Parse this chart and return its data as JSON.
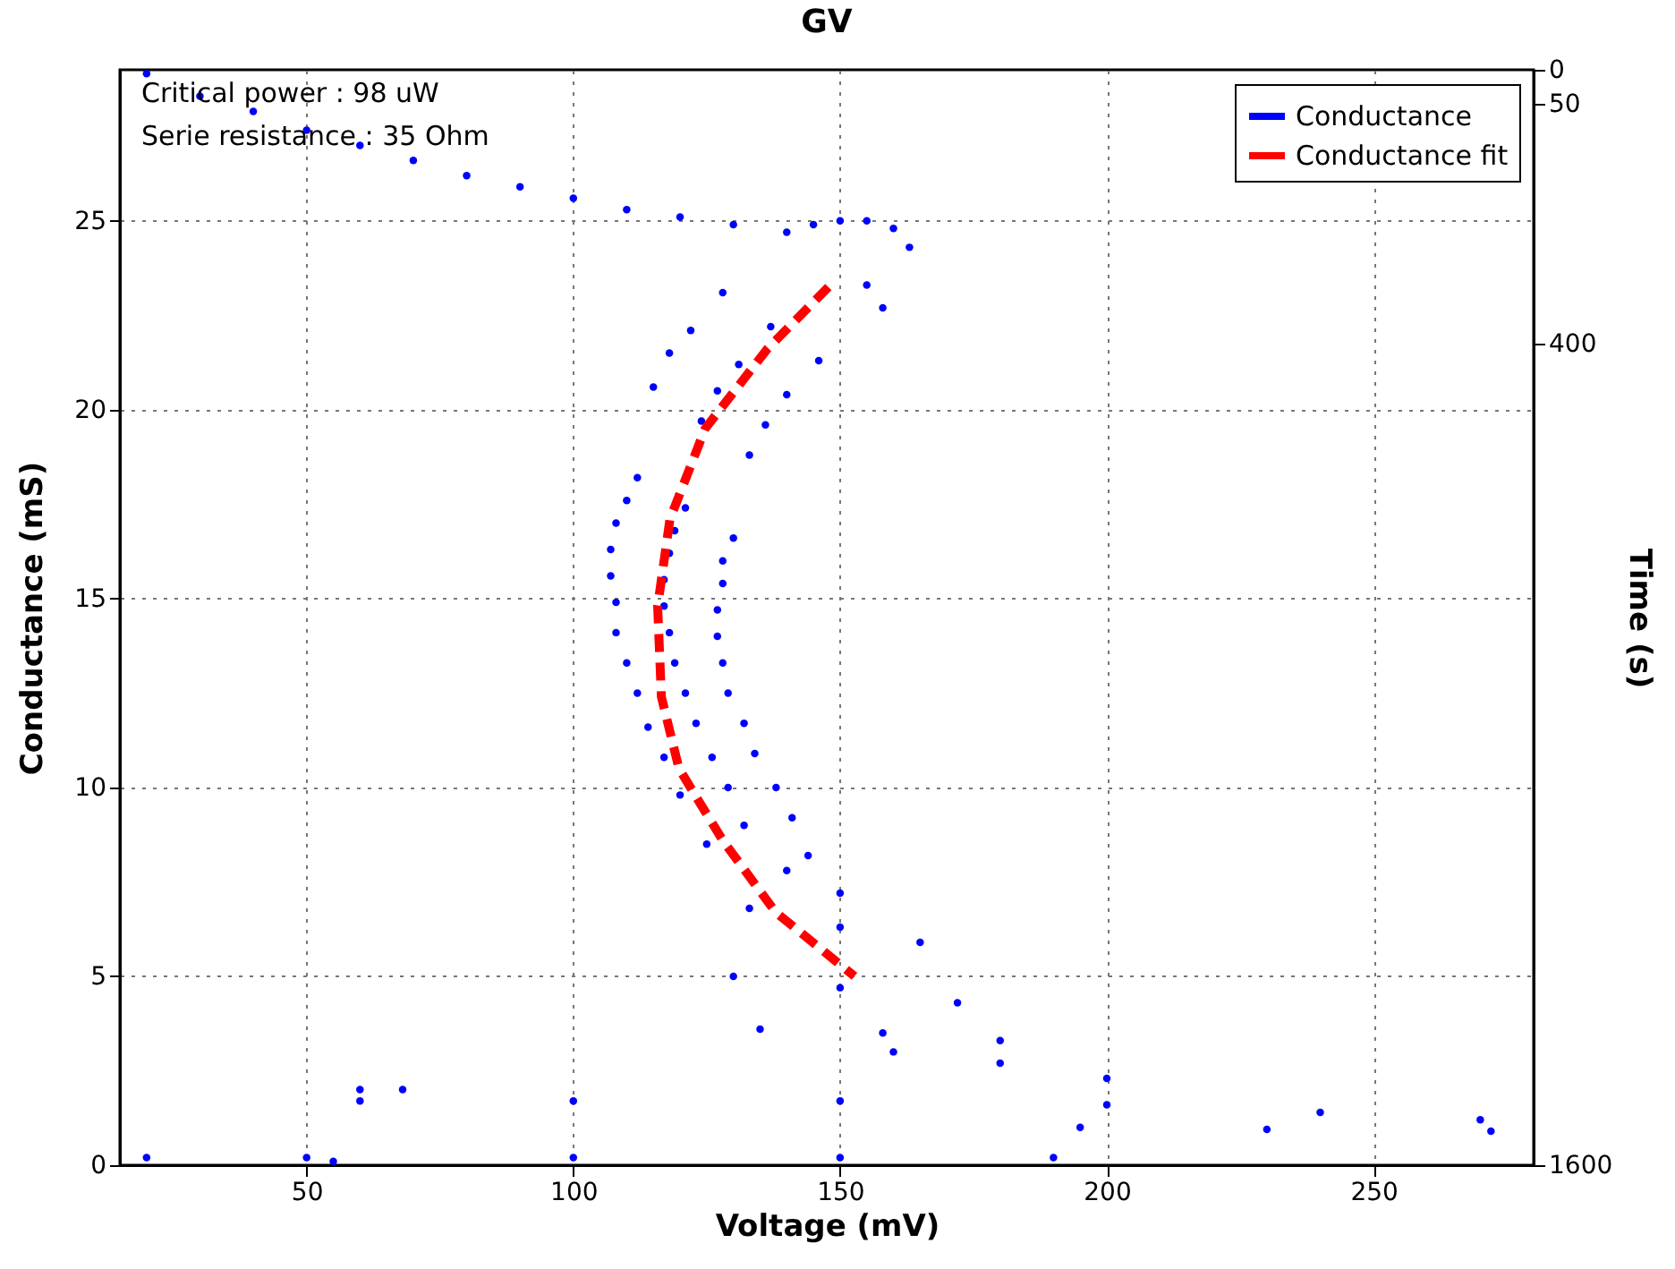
{
  "chart_data": {
    "type": "scatter",
    "title": "GV",
    "xlabel": "Voltage (mV)",
    "ylabel": "Conductance (mS)",
    "y2label": "Time (s)",
    "annotations": [
      "Critical power    :  98 uW",
      "Serie resistance  :  35 Ohm"
    ],
    "xlim": [
      15,
      280
    ],
    "xticks": [
      50,
      100,
      150,
      200,
      250
    ],
    "ylim": [
      0,
      29
    ],
    "yticks": [
      0,
      5,
      10,
      15,
      20,
      25
    ],
    "y2lim": [
      1600,
      0
    ],
    "y2ticks": [
      0,
      50,
      400,
      1600
    ],
    "grid": true,
    "legend": "top right",
    "series": [
      {
        "name": "Conductance",
        "color": "#0000ff",
        "x": [
          20,
          30,
          40,
          50,
          60,
          70,
          80,
          90,
          100,
          110,
          120,
          130,
          140,
          145,
          150,
          155,
          160,
          163,
          155,
          158,
          128,
          137,
          146,
          122,
          131,
          140,
          118,
          127,
          136,
          115,
          124,
          133,
          112,
          121,
          130,
          110,
          119,
          128,
          108,
          118,
          128,
          107,
          117,
          127,
          107,
          117,
          127,
          108,
          118,
          128,
          108,
          119,
          129,
          110,
          121,
          132,
          112,
          123,
          134,
          114,
          126,
          138,
          117,
          129,
          141,
          120,
          132,
          144,
          125,
          140,
          150,
          133,
          150,
          165,
          130,
          150,
          172,
          135,
          158,
          180,
          160,
          180,
          200,
          60,
          68,
          60,
          100,
          150,
          200,
          240,
          270,
          195,
          230,
          272,
          20,
          50,
          55,
          100,
          150,
          190
        ],
        "values": [
          28.9,
          28.3,
          27.9,
          27.4,
          27.0,
          26.6,
          26.2,
          25.9,
          25.6,
          25.3,
          25.1,
          24.9,
          24.7,
          24.9,
          25.0,
          25.0,
          24.8,
          24.3,
          23.3,
          22.7,
          23.1,
          22.2,
          21.3,
          22.1,
          21.2,
          20.4,
          21.5,
          20.5,
          19.6,
          20.6,
          19.7,
          18.8,
          18.2,
          17.4,
          16.6,
          17.6,
          16.8,
          16.0,
          17.0,
          16.2,
          15.4,
          16.3,
          15.5,
          14.7,
          15.6,
          14.8,
          14.0,
          14.9,
          14.1,
          13.3,
          14.1,
          13.3,
          12.5,
          13.3,
          12.5,
          11.7,
          12.5,
          11.7,
          10.9,
          11.6,
          10.8,
          10.0,
          10.8,
          10.0,
          9.2,
          9.8,
          9.0,
          8.2,
          8.5,
          7.8,
          7.2,
          6.8,
          6.3,
          5.9,
          5.0,
          4.7,
          4.3,
          3.6,
          3.5,
          3.3,
          3.0,
          2.7,
          2.3,
          2.0,
          2.0,
          1.7,
          1.7,
          1.7,
          1.6,
          1.4,
          1.2,
          1.0,
          0.95,
          0.9,
          0.2,
          0.2,
          0.1,
          0.2,
          0.2,
          0.2
        ]
      },
      {
        "name": "Conductance fit",
        "type": "line",
        "line_style": "dashed",
        "color": "#ff0000",
        "x": [
          147.8,
          136.3,
          124.7,
          118.1,
          115.8,
          116.5,
          119.8,
          128.0,
          137.9,
          152.7
        ],
        "values": [
          23.25,
          21.6,
          19.5,
          17.1,
          14.8,
          12.4,
          10.5,
          8.6,
          6.7,
          5.0
        ]
      }
    ]
  }
}
